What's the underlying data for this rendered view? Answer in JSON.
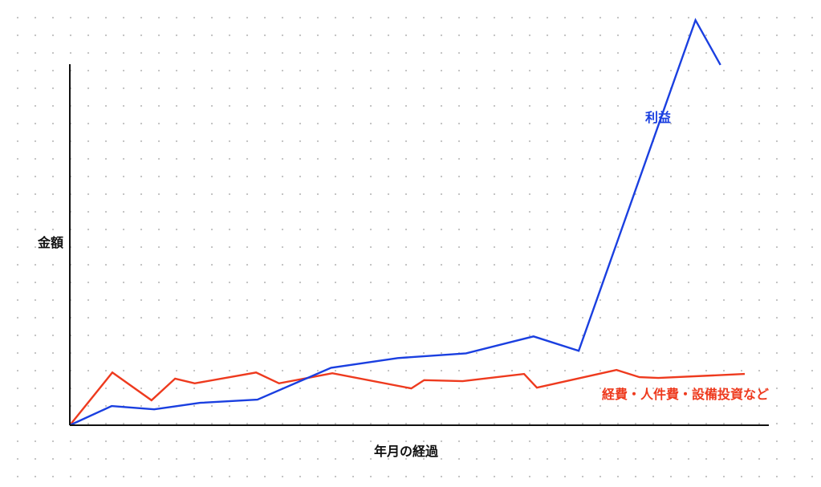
{
  "chart_data": {
    "type": "line",
    "title": "",
    "xlabel": "年月の経過",
    "ylabel": "金額",
    "grid": "dotted",
    "legend": "inline labels near lines",
    "xlim": [
      0,
      100
    ],
    "ylim": [
      0,
      100
    ],
    "series": [
      {
        "name": "利益",
        "color": "#1a3fe0",
        "label_position": "upper-right",
        "points": [
          {
            "x": 0,
            "y": 0
          },
          {
            "x": 6.2,
            "y": 5.3
          },
          {
            "x": 12.5,
            "y": 4.4
          },
          {
            "x": 19.3,
            "y": 6.2
          },
          {
            "x": 27.8,
            "y": 7.1
          },
          {
            "x": 38.7,
            "y": 15.9
          },
          {
            "x": 48.6,
            "y": 18.6
          },
          {
            "x": 58.7,
            "y": 19.9
          },
          {
            "x": 68.7,
            "y": 24.6
          },
          {
            "x": 75.4,
            "y": 20.6
          },
          {
            "x": 92.7,
            "y": 112.2
          },
          {
            "x": 96.4,
            "y": 99.8
          }
        ]
      },
      {
        "name": "経費・人件費・設備投資など",
        "color": "#ee3a1e",
        "label_position": "lower-right",
        "points": [
          {
            "x": 0,
            "y": 0
          },
          {
            "x": 6.3,
            "y": 14.6
          },
          {
            "x": 12.1,
            "y": 6.9
          },
          {
            "x": 15.6,
            "y": 12.9
          },
          {
            "x": 18.5,
            "y": 11.6
          },
          {
            "x": 27.6,
            "y": 14.6
          },
          {
            "x": 31.0,
            "y": 11.6
          },
          {
            "x": 38.9,
            "y": 14.4
          },
          {
            "x": 50.6,
            "y": 10.2
          },
          {
            "x": 52.5,
            "y": 12.5
          },
          {
            "x": 58.2,
            "y": 12.2
          },
          {
            "x": 67.3,
            "y": 14.2
          },
          {
            "x": 69.2,
            "y": 10.4
          },
          {
            "x": 81.0,
            "y": 15.3
          },
          {
            "x": 84.4,
            "y": 13.3
          },
          {
            "x": 87.2,
            "y": 13.1
          },
          {
            "x": 100,
            "y": 14.2
          }
        ]
      }
    ]
  }
}
